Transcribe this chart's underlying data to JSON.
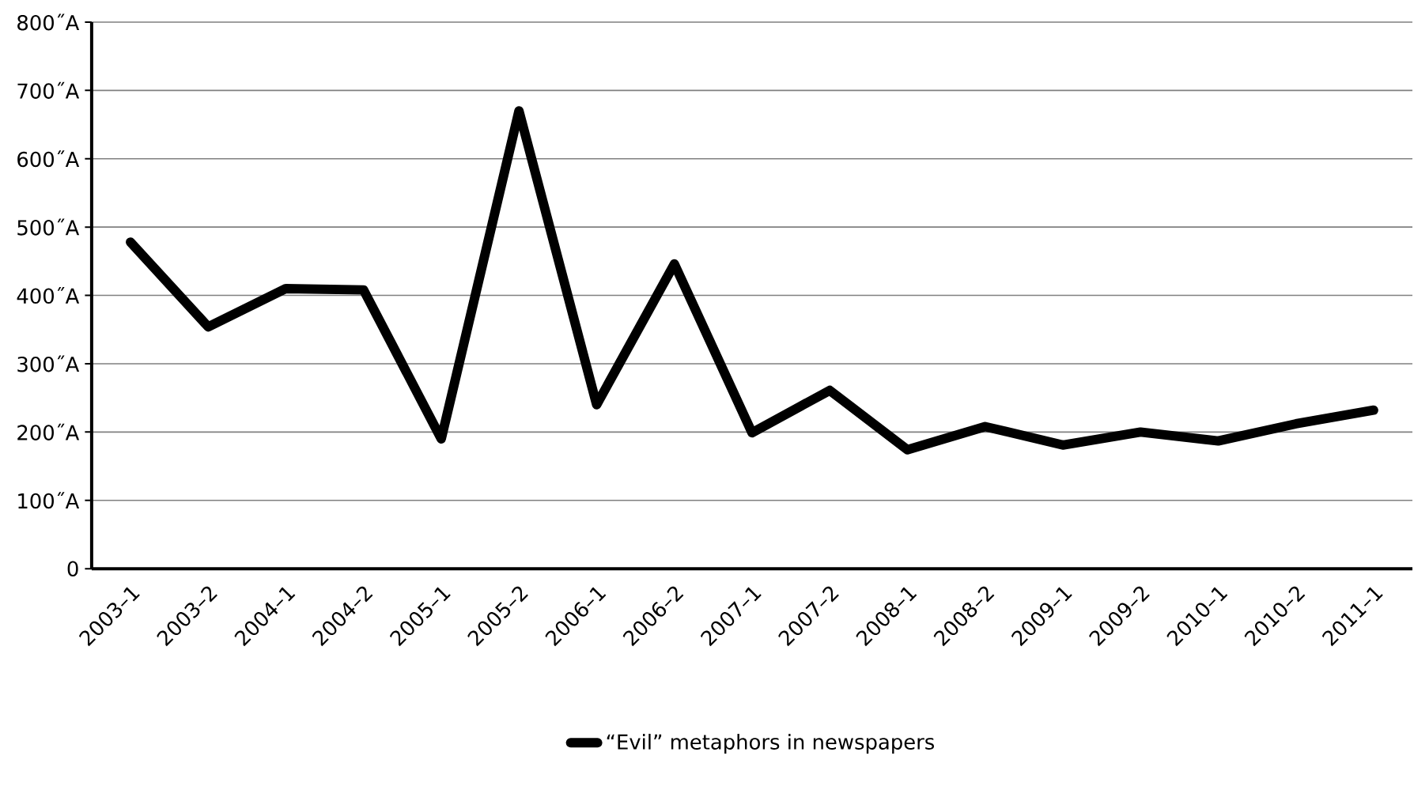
{
  "chart_data": {
    "type": "line",
    "categories": [
      "2003–1",
      "2003–2",
      "2004–1",
      "2004–2",
      "2005–1",
      "2005–2",
      "2006–1",
      "2006–2",
      "2007–1",
      "2007–2",
      "2008–1",
      "2008–2",
      "2009–1",
      "2009–2",
      "2010–1",
      "2010–2",
      "2011–1"
    ],
    "series": [
      {
        "name": "“Evil” metaphors in newspapers",
        "color": "#000000",
        "values": [
          478,
          354,
          410,
          408,
          190,
          670,
          240,
          446,
          199,
          261,
          174,
          208,
          181,
          200,
          187,
          212,
          232
        ]
      }
    ],
    "ylim": [
      0,
      800
    ],
    "yticks": [
      0,
      {
        "value": 100,
        "label": "100˝A"
      },
      {
        "value": 200,
        "label": "200˝A"
      },
      {
        "value": 300,
        "label": "300˝A"
      },
      {
        "value": 400,
        "label": "400˝A"
      },
      {
        "value": 500,
        "label": "500˝A"
      },
      {
        "value": 600,
        "label": "600˝A"
      },
      {
        "value": 700,
        "label": "700˝A"
      },
      {
        "value": 800,
        "label": "800˝A"
      }
    ],
    "grid": "y",
    "legend": "bottom",
    "marker": "none",
    "line_style": "solid"
  }
}
